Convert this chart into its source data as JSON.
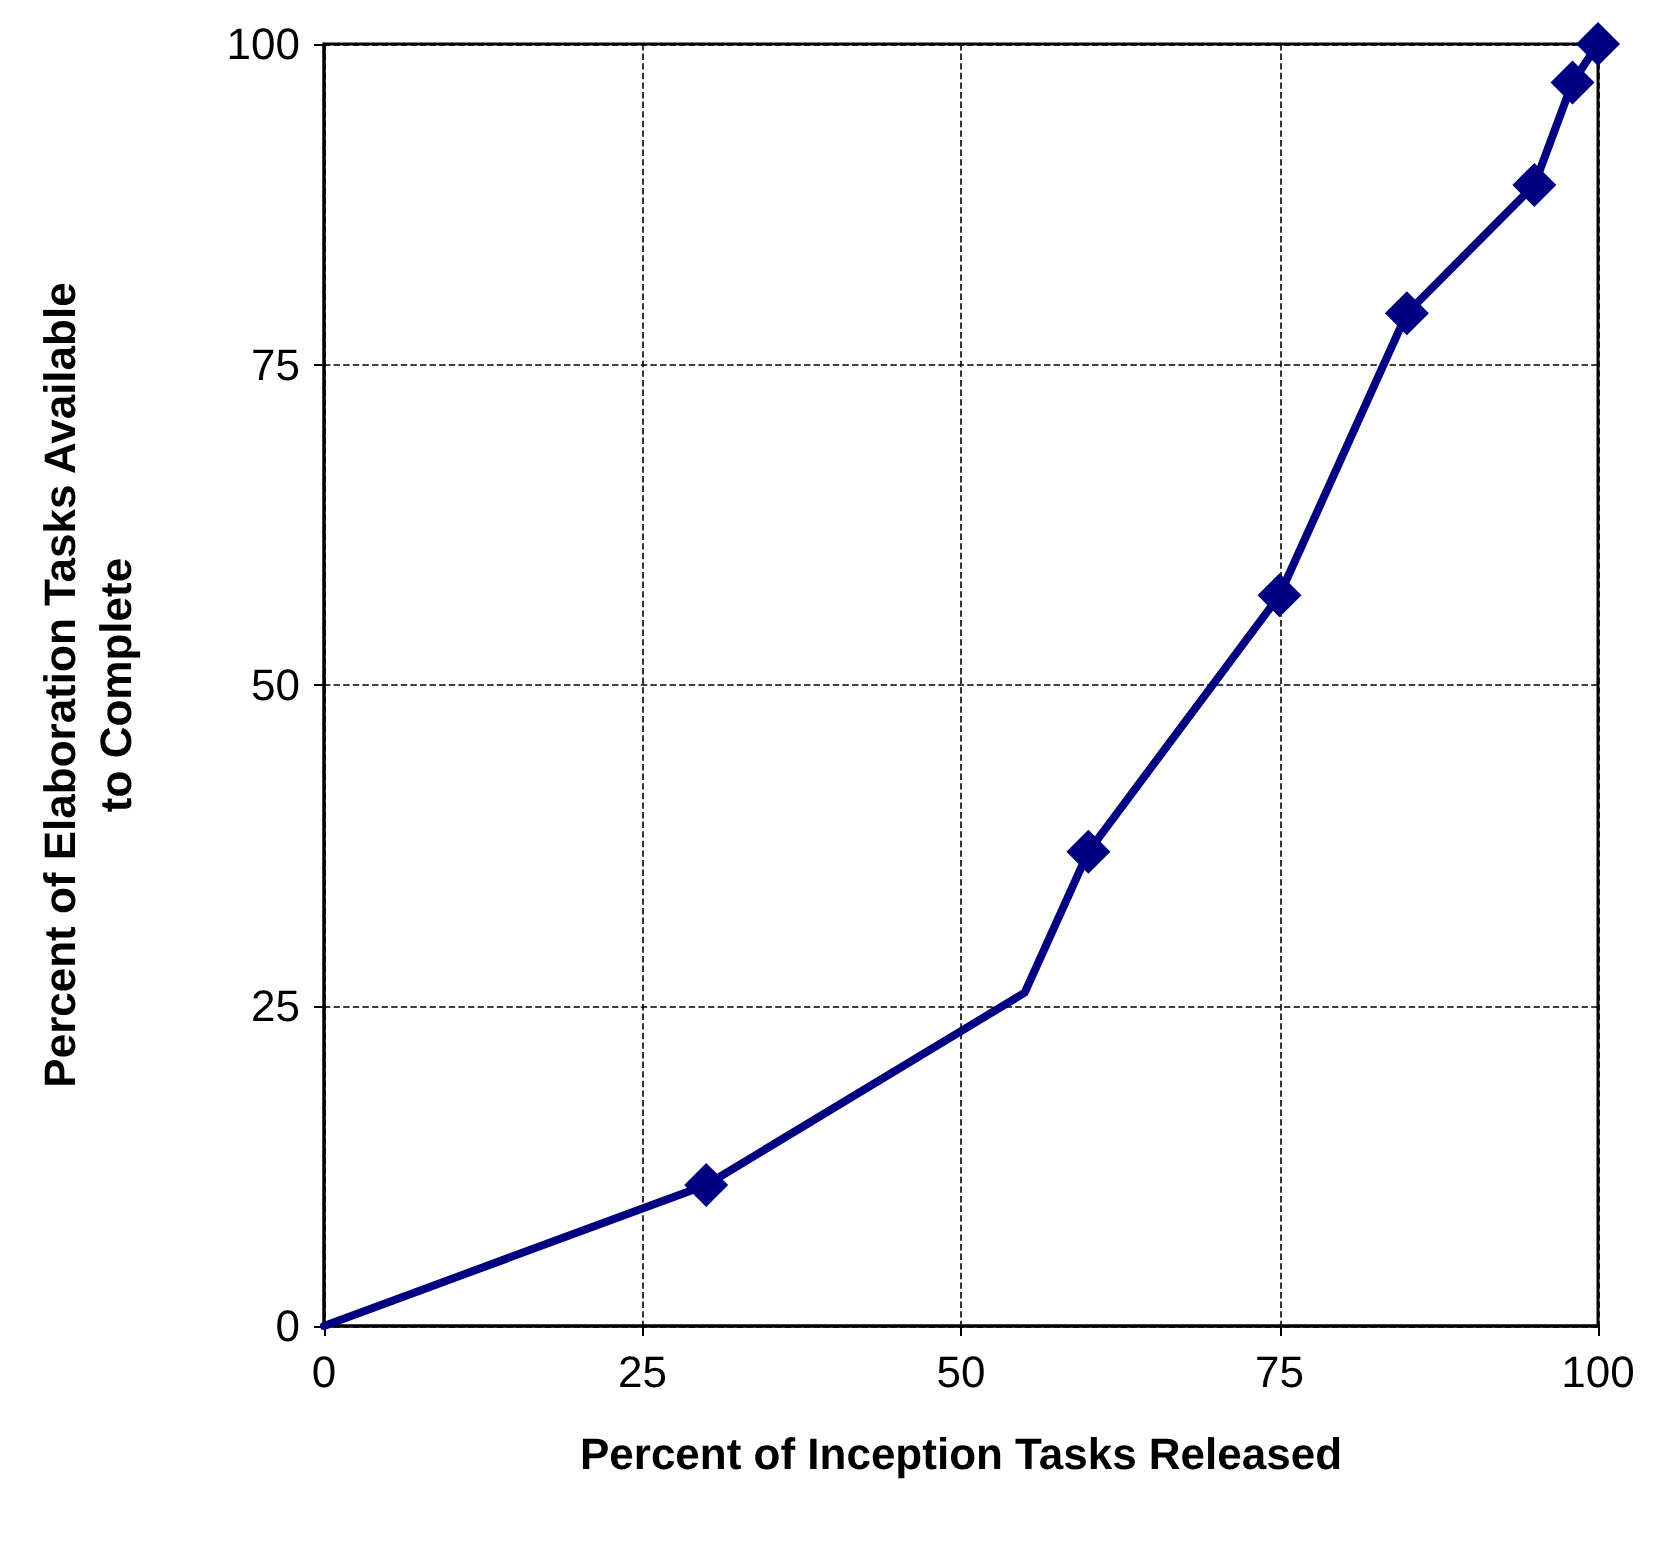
{
  "chart_data": {
    "type": "line",
    "xlabel": "Percent of Inception Tasks Released",
    "ylabel": "Percent of Elaboration Tasks Available\nto Complete",
    "xlim": [
      0,
      100
    ],
    "xticks": [
      0,
      25,
      50,
      75,
      100
    ],
    "ylim": [
      0,
      100
    ],
    "yticks": [
      0,
      25,
      50,
      75,
      100
    ],
    "grid": true,
    "series": [
      {
        "type": "line",
        "color": "#000080",
        "marker": "none",
        "line_style": "solid",
        "x": [
          0,
          30,
          55,
          60,
          75,
          85,
          95,
          98,
          100
        ],
        "values": [
          0,
          11,
          26,
          37,
          57,
          79,
          89,
          97,
          100
        ]
      },
      {
        "type": "scatter",
        "color": "#000080",
        "marker": "diamond",
        "x": [
          30,
          60,
          75,
          85,
          95,
          98,
          100
        ],
        "values": [
          11,
          37,
          57,
          79,
          89,
          97,
          100
        ]
      }
    ]
  }
}
